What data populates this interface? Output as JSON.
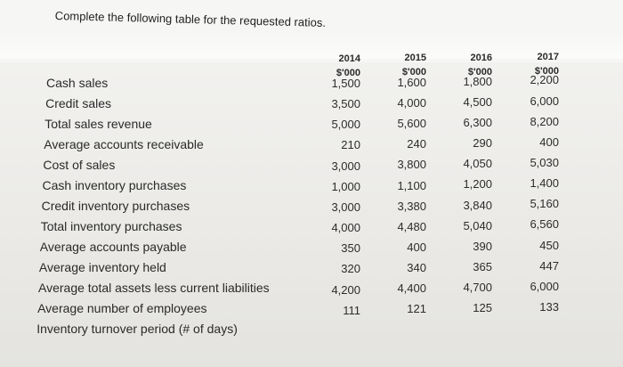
{
  "instruction": "Complete the following table for the requested ratios.",
  "years": [
    "2014",
    "2015",
    "2016",
    "2017"
  ],
  "unit": "$'000",
  "rows": [
    {
      "label": "Cash sales",
      "values": [
        "1,500",
        "1,600",
        "1,800",
        "2,200"
      ]
    },
    {
      "label": "Credit sales",
      "values": [
        "3,500",
        "4,000",
        "4,500",
        "6,000"
      ]
    },
    {
      "label": "Total sales revenue",
      "values": [
        "5,000",
        "5,600",
        "6,300",
        "8,200"
      ]
    },
    {
      "label": "Average accounts receivable",
      "values": [
        "210",
        "240",
        "290",
        "400"
      ]
    },
    {
      "label": "Cost of sales",
      "values": [
        "3,000",
        "3,800",
        "4,050",
        "5,030"
      ]
    },
    {
      "label": "Cash inventory purchases",
      "values": [
        "1,000",
        "1,100",
        "1,200",
        "1,400"
      ]
    },
    {
      "label": "Credit inventory purchases",
      "values": [
        "3,000",
        "3,380",
        "3,840",
        "5,160"
      ]
    },
    {
      "label": "Total inventory purchases",
      "values": [
        "4,000",
        "4,480",
        "5,040",
        "6,560"
      ]
    },
    {
      "label": "Average accounts payable",
      "values": [
        "350",
        "400",
        "390",
        "450"
      ]
    },
    {
      "label": "Average inventory held",
      "values": [
        "320",
        "340",
        "365",
        "447"
      ]
    },
    {
      "label": "Average total assets less current liabilities",
      "values": [
        "4,200",
        "4,400",
        "4,700",
        "6,000"
      ]
    },
    {
      "label": "Average number of employees",
      "values": [
        "111",
        "121",
        "125",
        "133"
      ]
    },
    {
      "label": "Inventory turnover period (# of days)",
      "values": [
        "",
        "",
        "",
        ""
      ]
    }
  ]
}
